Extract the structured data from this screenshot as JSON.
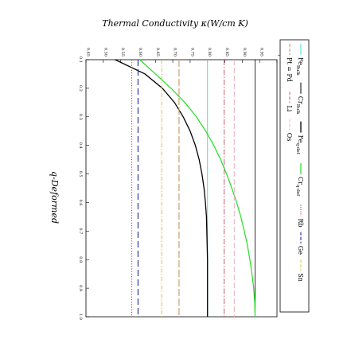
{
  "chart_data": {
    "type": "line",
    "title": "Thermal Conductivity κ(W/cm K)",
    "xlabel": "q-Deformed",
    "ylabel": "",
    "xlim": [
      0.1,
      1.0
    ],
    "ylim": [
      0.45,
      1.0
    ],
    "x_ticks": [
      "0.1",
      "0.2",
      "0.3",
      "0.4",
      "0.5",
      "0.6",
      "0.7",
      "0.8",
      "0.9",
      "1.0"
    ],
    "y_ticks": [
      "0.45",
      "0.50",
      "0.55",
      "0.60",
      "0.65",
      "0.70",
      "0.75",
      "0.80",
      "0.85",
      "0.90",
      "0.95",
      "1"
    ],
    "x_tick_values": [
      0.1,
      0.2,
      0.3,
      0.4,
      0.5,
      0.6,
      0.7,
      0.8,
      0.9,
      1.0
    ],
    "y_tick_values": [
      0.45,
      0.5,
      0.55,
      0.6,
      0.65,
      0.7,
      0.75,
      0.8,
      0.85,
      0.9,
      0.95,
      1.0
    ],
    "orientation": "rotated 90 degrees clockwise",
    "grid": false,
    "legend_position": "right",
    "series": [
      {
        "name": "Fe_Bulk",
        "kind": "constant",
        "value": 0.8,
        "color": "#40e0e0",
        "dash": "solid",
        "width": 1.0
      },
      {
        "name": "Cr_Bulk",
        "kind": "constant",
        "value": 0.937,
        "color": "#000000",
        "dash": "solid",
        "width": 0.8
      },
      {
        "name": "Fe_q-def",
        "kind": "curve",
        "x": [
          0.1,
          0.15,
          0.2,
          0.25,
          0.3,
          0.35,
          0.4,
          0.45,
          0.5,
          0.55,
          0.6,
          0.65,
          0.7,
          0.75,
          0.8,
          0.85,
          0.9,
          0.95,
          1.0
        ],
        "y": [
          0.534,
          0.62,
          0.67,
          0.705,
          0.73,
          0.75,
          0.765,
          0.776,
          0.784,
          0.79,
          0.794,
          0.797,
          0.798,
          0.799,
          0.8,
          0.8,
          0.8,
          0.8,
          0.8
        ],
        "color": "#000000",
        "dash": "solid",
        "width": 1.3
      },
      {
        "name": "Cr_q-def",
        "kind": "curve",
        "x": [
          0.1,
          0.15,
          0.2,
          0.25,
          0.3,
          0.35,
          0.4,
          0.45,
          0.5,
          0.55,
          0.6,
          0.65,
          0.7,
          0.75,
          0.8,
          0.85,
          0.9,
          0.95,
          1.0
        ],
        "y": [
          0.605,
          0.65,
          0.695,
          0.735,
          0.768,
          0.795,
          0.818,
          0.838,
          0.855,
          0.87,
          0.884,
          0.896,
          0.906,
          0.915,
          0.922,
          0.928,
          0.933,
          0.936,
          0.937
        ],
        "color": "#22dd22",
        "dash": "solid",
        "width": 1.2
      },
      {
        "name": "Rb",
        "kind": "constant",
        "value": 0.582,
        "color": "#dd2222",
        "dash": "1.2,2",
        "width": 1.0
      },
      {
        "name": "Ge",
        "kind": "constant",
        "value": 0.6,
        "color": "#3333aa",
        "dash": "8,4",
        "width": 1.2
      },
      {
        "name": "Sn",
        "kind": "constant",
        "value": 0.668,
        "color": "#e0c040",
        "dash": "5,2,1.5,2",
        "width": 1.0
      },
      {
        "name": "Pt = Pd",
        "kind": "constant",
        "value": 0.718,
        "color": "#c8a070",
        "dash": "9,3",
        "width": 1.2
      },
      {
        "name": "Li",
        "kind": "constant",
        "value": 0.848,
        "color": "#c06070",
        "dash": "7,2,1.5,2",
        "width": 1.0
      },
      {
        "name": "Os",
        "kind": "constant",
        "value": 0.877,
        "color": "#e8b0c0",
        "dash": "7,3",
        "width": 1.0
      }
    ],
    "legend": {
      "row1": [
        "Fe_Bulk",
        "Cr_Bulk",
        "Fe_q-def",
        "Cr_q-def",
        "Rb",
        "Ge",
        "Sn"
      ],
      "row2": [
        "Pt = Pd",
        "Li",
        "Os"
      ]
    }
  }
}
